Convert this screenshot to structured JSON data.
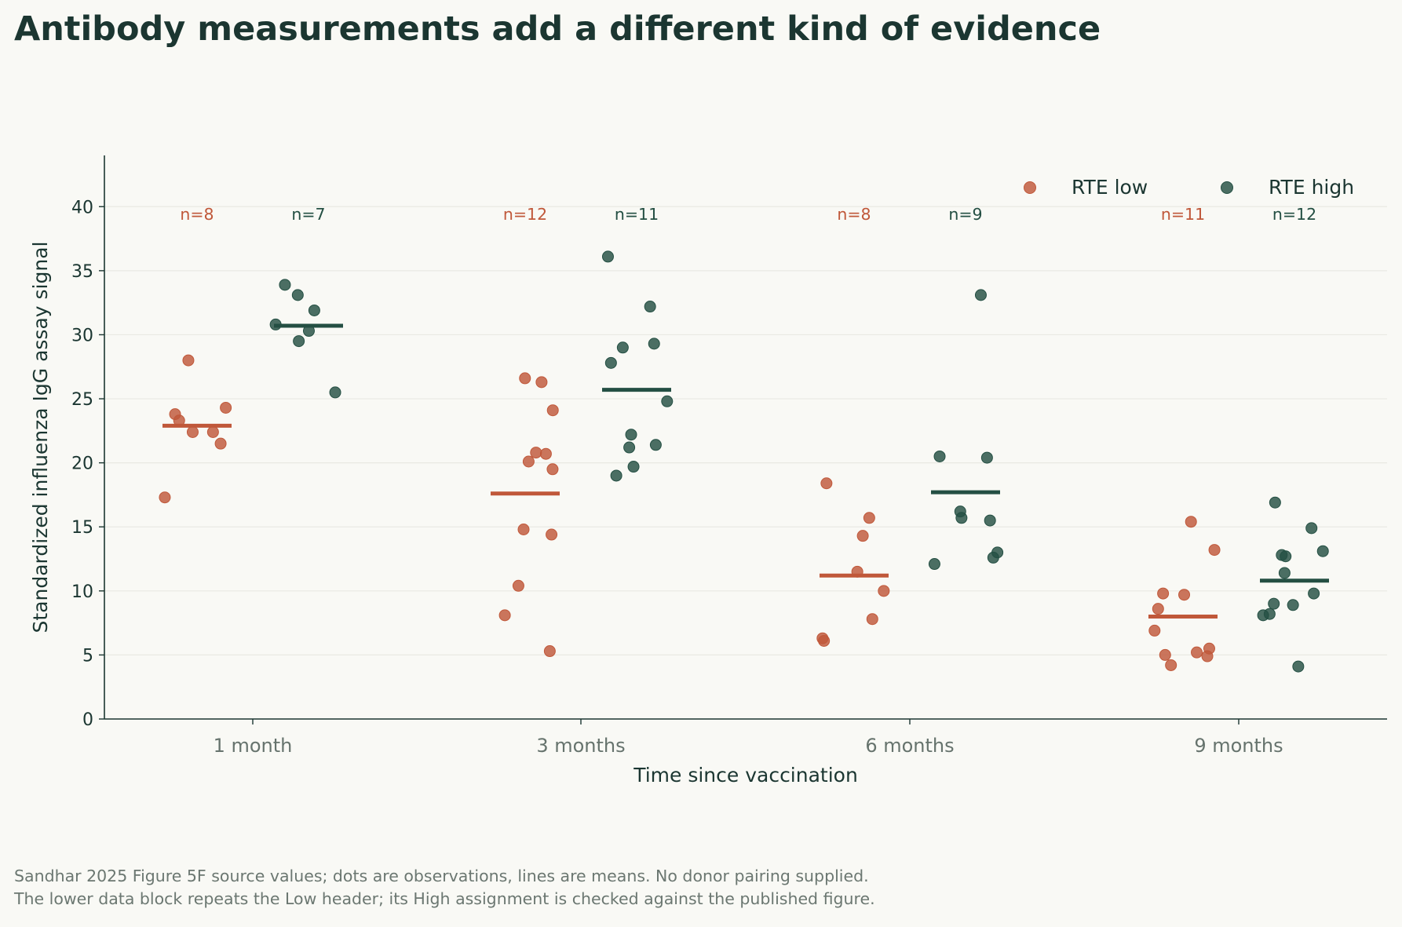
{
  "title": "Antibody measurements add a different kind of evidence",
  "footnote": [
    "Sandhar 2025 Figure 5F source values; dots are observations, lines are means. No donor pairing supplied.",
    "The lower data block repeats the Low header; its High assignment is checked against the published figure."
  ],
  "colors": {
    "rte_low": "#c0583a",
    "rte_high": "#244f43",
    "title": "#1b3631",
    "axis": "#1b3631",
    "tick_label": "#66736d"
  },
  "chart_data": {
    "type": "scatter",
    "xlabel": "Time since vaccination",
    "ylabel": "Standardized influenza IgG assay signal",
    "ylim": [
      0,
      44
    ],
    "yticks": [
      0,
      5,
      10,
      15,
      20,
      25,
      30,
      35,
      40
    ],
    "categories": [
      "1 month",
      "3 months",
      "6 months",
      "9 months"
    ],
    "grid": "horizontal",
    "legend": {
      "placement": "top-right",
      "entries": [
        "RTE low",
        "RTE high"
      ]
    },
    "series": [
      {
        "name": "RTE low",
        "counts": [
          "n=8",
          "n=12",
          "n=8",
          "n=11"
        ],
        "means": [
          22.9,
          17.6,
          11.2,
          8.0
        ],
        "points": [
          [
            28.0,
            24.3,
            23.8,
            23.3,
            22.4,
            22.4,
            21.5,
            17.3
          ],
          [
            26.6,
            26.3,
            24.1,
            20.8,
            20.7,
            20.1,
            19.5,
            14.8,
            14.4,
            10.4,
            8.1,
            5.3
          ],
          [
            18.4,
            15.7,
            14.3,
            11.5,
            10.0,
            7.8,
            6.3,
            6.1
          ],
          [
            15.4,
            13.2,
            9.8,
            9.7,
            8.6,
            6.9,
            5.5,
            5.2,
            5.0,
            4.9,
            4.2
          ]
        ]
      },
      {
        "name": "RTE high",
        "counts": [
          "n=7",
          "n=11",
          "n=9",
          "n=12"
        ],
        "means": [
          30.7,
          25.7,
          17.7,
          10.8
        ],
        "points": [
          [
            33.9,
            33.1,
            31.9,
            30.8,
            30.3,
            29.5,
            25.5
          ],
          [
            36.1,
            32.2,
            29.3,
            29.0,
            27.8,
            24.8,
            22.2,
            21.4,
            21.2,
            19.7,
            19.0
          ],
          [
            33.1,
            20.5,
            20.4,
            16.2,
            15.7,
            15.5,
            13.0,
            12.6,
            12.1
          ],
          [
            16.9,
            14.9,
            13.1,
            12.8,
            12.7,
            11.4,
            9.8,
            9.0,
            8.9,
            8.2,
            8.1,
            4.1
          ]
        ]
      }
    ]
  }
}
